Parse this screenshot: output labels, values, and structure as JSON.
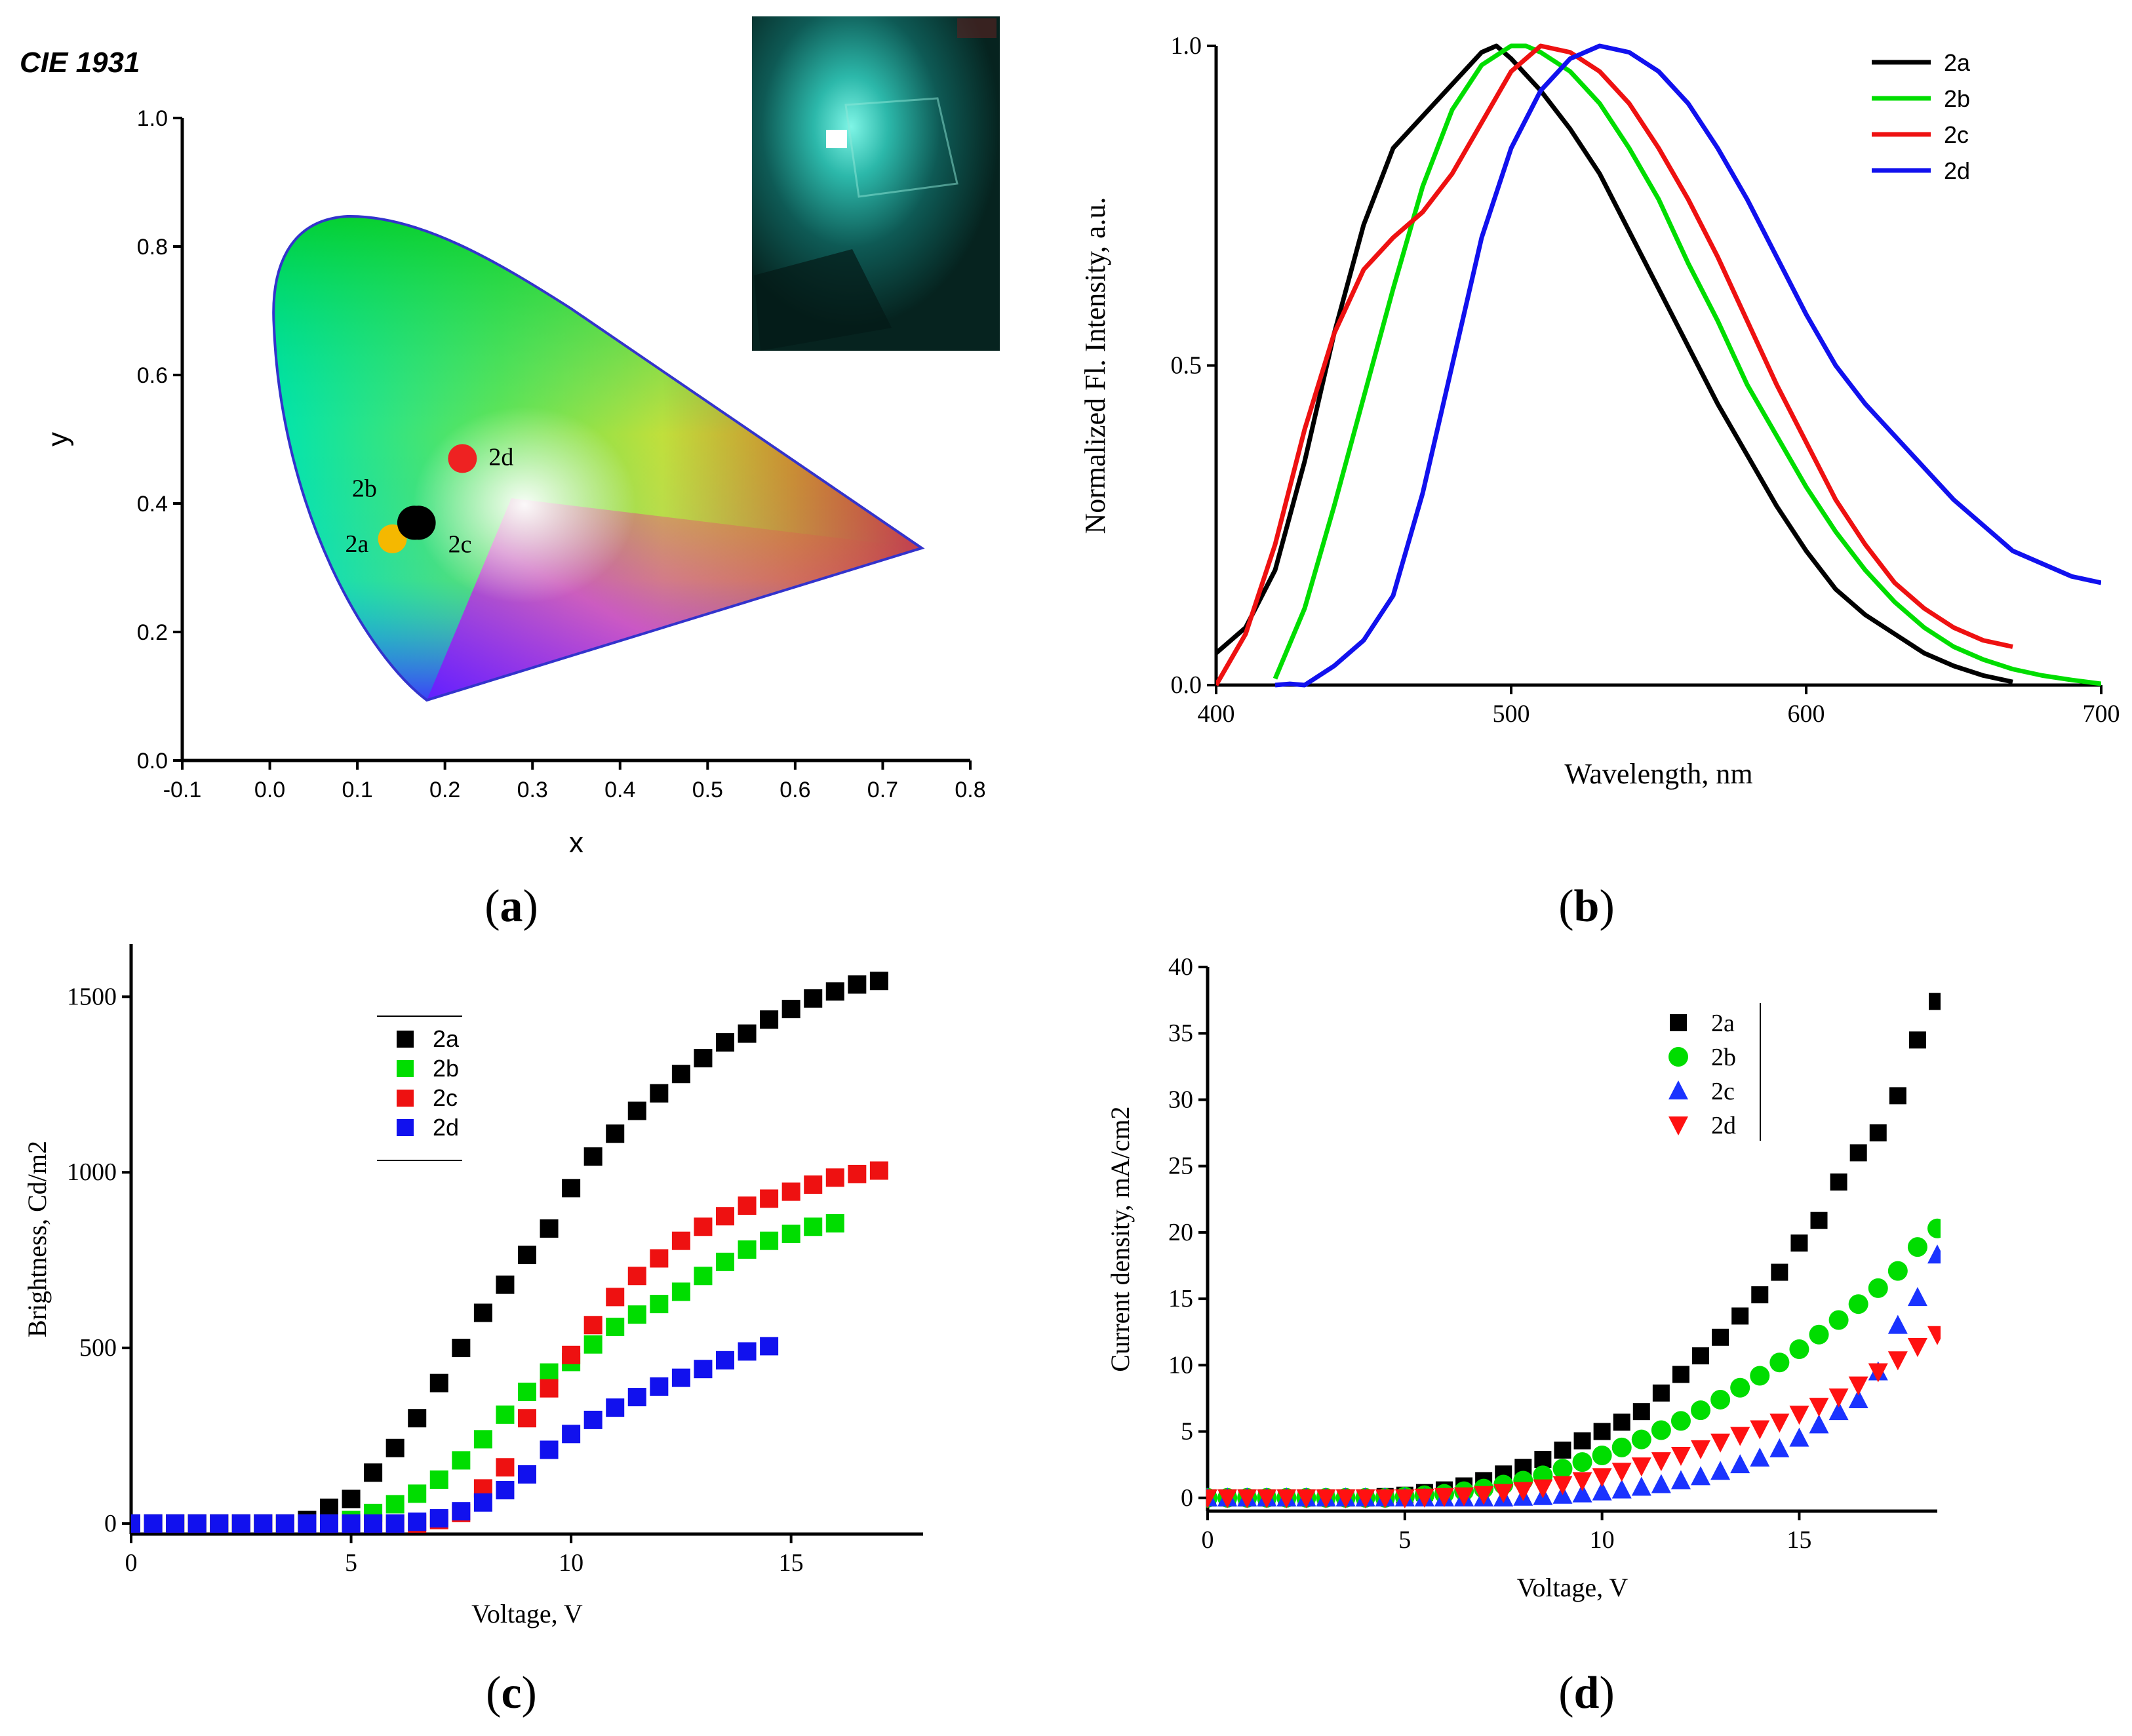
{
  "captions": {
    "a": "a",
    "b": "b",
    "c": "c",
    "d": "d"
  },
  "colors": {
    "2a_c": "#000000",
    "2b_c": "#00dd00",
    "2c_c": "#ee1111",
    "2d_c": "#1111ee",
    "2a_dot": "#f5b800",
    "2d_dot": "#ee2222"
  },
  "chart_data": [
    {
      "id": "a",
      "type": "scatter",
      "title": "CIE 1931",
      "xlabel": "x",
      "ylabel": "y",
      "xlim": [
        -0.1,
        0.8
      ],
      "ylim": [
        0.0,
        1.0
      ],
      "xticks": [
        "-0.1",
        "0.0",
        "0.1",
        "0.2",
        "0.3",
        "0.4",
        "0.5",
        "0.6",
        "0.7",
        "0.8"
      ],
      "yticks": [
        "0.0",
        "0.2",
        "0.4",
        "0.6",
        "0.8",
        "1.0"
      ],
      "points": [
        {
          "label": "2a",
          "x": 0.14,
          "y": 0.345
        },
        {
          "label": "2b",
          "x": 0.165,
          "y": 0.37
        },
        {
          "label": "2c",
          "x": 0.17,
          "y": 0.37
        },
        {
          "label": "2d",
          "x": 0.22,
          "y": 0.47
        }
      ]
    },
    {
      "id": "b",
      "type": "line",
      "xlabel": "Wavelength, nm",
      "ylabel": "Normalized Fl. Intensity, a.u.",
      "xlim": [
        400,
        700
      ],
      "ylim": [
        0,
        1
      ],
      "xticks": [
        "400",
        "500",
        "600",
        "700"
      ],
      "yticks": [
        "0.0",
        "0.5",
        "1.0"
      ],
      "legend_position": "top-right",
      "series": [
        {
          "name": "2a",
          "x": [
            400,
            410,
            420,
            430,
            440,
            450,
            460,
            470,
            480,
            490,
            495,
            500,
            510,
            520,
            530,
            540,
            550,
            560,
            570,
            580,
            590,
            600,
            610,
            620,
            630,
            640,
            650,
            660,
            670
          ],
          "y": [
            0.05,
            0.09,
            0.18,
            0.35,
            0.55,
            0.72,
            0.84,
            0.89,
            0.94,
            0.99,
            1.0,
            0.98,
            0.93,
            0.87,
            0.8,
            0.71,
            0.62,
            0.53,
            0.44,
            0.36,
            0.28,
            0.21,
            0.15,
            0.11,
            0.08,
            0.05,
            0.03,
            0.015,
            0.005
          ]
        },
        {
          "name": "2b",
          "x": [
            420,
            430,
            440,
            450,
            460,
            470,
            480,
            490,
            500,
            505,
            510,
            520,
            530,
            540,
            550,
            560,
            570,
            580,
            590,
            600,
            610,
            620,
            630,
            640,
            650,
            660,
            670,
            680,
            690,
            700
          ],
          "y": [
            0.01,
            0.12,
            0.28,
            0.45,
            0.62,
            0.78,
            0.9,
            0.97,
            1.0,
            1.0,
            0.99,
            0.96,
            0.91,
            0.84,
            0.76,
            0.66,
            0.57,
            0.47,
            0.39,
            0.31,
            0.24,
            0.18,
            0.13,
            0.09,
            0.06,
            0.04,
            0.025,
            0.015,
            0.008,
            0.002
          ]
        },
        {
          "name": "2c",
          "x": [
            400,
            410,
            420,
            430,
            440,
            450,
            460,
            470,
            480,
            490,
            500,
            510,
            520,
            530,
            540,
            550,
            560,
            570,
            580,
            590,
            600,
            610,
            620,
            630,
            640,
            650,
            660,
            670
          ],
          "y": [
            0.0,
            0.08,
            0.22,
            0.4,
            0.55,
            0.65,
            0.7,
            0.74,
            0.8,
            0.88,
            0.96,
            1.0,
            0.99,
            0.96,
            0.91,
            0.84,
            0.76,
            0.67,
            0.57,
            0.47,
            0.38,
            0.29,
            0.22,
            0.16,
            0.12,
            0.09,
            0.07,
            0.06
          ]
        },
        {
          "name": "2d",
          "x": [
            420,
            425,
            430,
            440,
            450,
            460,
            470,
            480,
            490,
            500,
            510,
            520,
            530,
            540,
            550,
            560,
            570,
            580,
            590,
            600,
            610,
            620,
            630,
            640,
            650,
            660,
            670,
            680,
            690,
            700
          ],
          "y": [
            0.0,
            0.002,
            0.0,
            0.03,
            0.07,
            0.14,
            0.3,
            0.5,
            0.7,
            0.84,
            0.93,
            0.98,
            1.0,
            0.99,
            0.96,
            0.91,
            0.84,
            0.76,
            0.67,
            0.58,
            0.5,
            0.44,
            0.39,
            0.34,
            0.29,
            0.25,
            0.21,
            0.19,
            0.17,
            0.16
          ]
        }
      ]
    },
    {
      "id": "c",
      "type": "scatter",
      "xlabel": "Voltage, V",
      "ylabel": "Brightness, Cd/m2",
      "xlim": [
        0,
        18
      ],
      "ylim": [
        -30,
        1650
      ],
      "xticks": [
        "0",
        "5",
        "10",
        "15"
      ],
      "yticks": [
        "0",
        "500",
        "1000",
        "1500"
      ],
      "legend_position": "upper-left",
      "series": [
        {
          "name": "2a",
          "x": [
            0,
            0.5,
            1,
            1.5,
            2,
            2.5,
            3,
            3.5,
            4,
            4.5,
            5,
            5.5,
            6,
            6.5,
            7,
            7.5,
            8,
            8.5,
            9,
            9.5,
            10,
            10.5,
            11,
            11.5,
            12,
            12.5,
            13,
            13.5,
            14,
            14.5,
            15,
            15.5,
            16,
            16.5,
            17
          ],
          "y": [
            0,
            0,
            0,
            0,
            0,
            0,
            0,
            0,
            10,
            45,
            70,
            145,
            215,
            300,
            400,
            500,
            600,
            680,
            765,
            840,
            955,
            1045,
            1110,
            1175,
            1225,
            1280,
            1325,
            1370,
            1395,
            1435,
            1465,
            1495,
            1515,
            1535,
            1545
          ]
        },
        {
          "name": "2b",
          "x": [
            0,
            0.5,
            1,
            1.5,
            2,
            2.5,
            3,
            3.5,
            4,
            4.5,
            5,
            5.5,
            6,
            6.5,
            7,
            7.5,
            8,
            8.5,
            9,
            9.5,
            10,
            10.5,
            11,
            11.5,
            12,
            12.5,
            13,
            13.5,
            14,
            14.5,
            15,
            15.5,
            16
          ],
          "y": [
            0,
            0,
            0,
            0,
            0,
            0,
            0,
            0,
            0,
            0,
            10,
            30,
            55,
            85,
            125,
            180,
            240,
            310,
            375,
            430,
            460,
            510,
            560,
            595,
            625,
            660,
            705,
            745,
            780,
            805,
            825,
            845,
            855
          ]
        },
        {
          "name": "2c",
          "x": [
            0,
            0.5,
            1,
            1.5,
            2,
            2.5,
            3,
            3.5,
            4,
            4.5,
            5,
            5.5,
            6,
            6.5,
            7,
            7.5,
            8,
            8.5,
            9,
            9.5,
            10,
            10.5,
            11,
            11.5,
            12,
            12.5,
            13,
            13.5,
            14,
            14.5,
            15,
            15.5,
            16,
            16.5,
            17
          ],
          "y": [
            0,
            0,
            0,
            0,
            0,
            0,
            0,
            0,
            0,
            0,
            0,
            0,
            0,
            0,
            10,
            30,
            100,
            160,
            300,
            385,
            480,
            565,
            645,
            705,
            755,
            805,
            845,
            875,
            905,
            925,
            945,
            965,
            985,
            995,
            1005
          ]
        },
        {
          "name": "2d",
          "x": [
            0,
            0.5,
            1,
            1.5,
            2,
            2.5,
            3,
            3.5,
            4,
            4.5,
            5,
            5.5,
            6,
            6.5,
            7,
            7.5,
            8,
            8.5,
            9,
            9.5,
            10,
            10.5,
            11,
            11.5,
            12,
            12.5,
            13,
            13.5,
            14,
            14.5
          ],
          "y": [
            0,
            0,
            0,
            0,
            0,
            0,
            0,
            0,
            0,
            0,
            0,
            0,
            0,
            5,
            15,
            35,
            60,
            95,
            140,
            210,
            255,
            295,
            330,
            360,
            390,
            415,
            440,
            465,
            490,
            505
          ]
        }
      ]
    },
    {
      "id": "d",
      "type": "scatter",
      "xlabel": "Voltage, V",
      "ylabel": "Current density, mA/cm2",
      "xlim": [
        0,
        18.5
      ],
      "ylim": [
        -1,
        40
      ],
      "xticks": [
        "0",
        "5",
        "10",
        "15"
      ],
      "yticks": [
        "0",
        "5",
        "10",
        "15",
        "20",
        "25",
        "30",
        "35",
        "40"
      ],
      "legend_position": "top-right",
      "series": [
        {
          "name": "2a",
          "marker": "square",
          "x": [
            0,
            0.5,
            1,
            1.5,
            2,
            2.5,
            3,
            3.5,
            4,
            4.5,
            5,
            5.5,
            6,
            6.5,
            7,
            7.5,
            8,
            8.5,
            9,
            9.5,
            10,
            10.5,
            11,
            11.5,
            12,
            12.5,
            13,
            13.5,
            14,
            14.5,
            15,
            15.5,
            16,
            16.5,
            17,
            17.5,
            18,
            18.5
          ],
          "y": [
            0,
            0,
            0,
            0,
            0,
            0,
            0,
            0,
            0,
            0.1,
            0.2,
            0.4,
            0.6,
            0.9,
            1.3,
            1.8,
            2.3,
            2.9,
            3.6,
            4.3,
            5.0,
            5.7,
            6.5,
            7.9,
            9.3,
            10.7,
            12.1,
            13.7,
            15.3,
            17.0,
            19.2,
            20.9,
            23.8,
            26.0,
            27.5,
            30.3,
            34.5,
            37.4
          ]
        },
        {
          "name": "2b",
          "marker": "circle",
          "x": [
            0,
            0.5,
            1,
            1.5,
            2,
            2.5,
            3,
            3.5,
            4,
            4.5,
            5,
            5.5,
            6,
            6.5,
            7,
            7.5,
            8,
            8.5,
            9,
            9.5,
            10,
            10.5,
            11,
            11.5,
            12,
            12.5,
            13,
            13.5,
            14,
            14.5,
            15,
            15.5,
            16,
            16.5,
            17,
            17.5,
            18,
            18.5
          ],
          "y": [
            0,
            0,
            0,
            0,
            0,
            0,
            0,
            0,
            0,
            0,
            0.1,
            0.2,
            0.3,
            0.5,
            0.7,
            1.0,
            1.3,
            1.7,
            2.2,
            2.7,
            3.2,
            3.8,
            4.4,
            5.1,
            5.8,
            6.6,
            7.4,
            8.3,
            9.2,
            10.2,
            11.2,
            12.3,
            13.4,
            14.6,
            15.8,
            17.1,
            18.9,
            20.3
          ]
        },
        {
          "name": "2c",
          "marker": "triangle-up",
          "x": [
            0,
            0.5,
            1,
            1.5,
            2,
            2.5,
            3,
            3.5,
            4,
            4.5,
            5,
            5.5,
            6,
            6.5,
            7,
            7.5,
            8,
            8.5,
            9,
            9.5,
            10,
            10.5,
            11,
            11.5,
            12,
            12.5,
            13,
            13.5,
            14,
            14.5,
            15,
            15.5,
            16,
            16.5,
            17,
            17.5,
            18,
            18.5
          ],
          "y": [
            0,
            0,
            0,
            0,
            0,
            0,
            0,
            0,
            0,
            0,
            0,
            0,
            0,
            0,
            0,
            0,
            0.05,
            0.1,
            0.2,
            0.3,
            0.45,
            0.6,
            0.8,
            1.0,
            1.3,
            1.6,
            2.0,
            2.5,
            3.0,
            3.7,
            4.5,
            5.5,
            6.5,
            7.4,
            9.5,
            13.0,
            15.1,
            18.3
          ]
        },
        {
          "name": "2d",
          "marker": "triangle-down",
          "x": [
            0,
            0.5,
            1,
            1.5,
            2,
            2.5,
            3,
            3.5,
            4,
            4.5,
            5,
            5.5,
            6,
            6.5,
            7,
            7.5,
            8,
            8.5,
            9,
            9.5,
            10,
            10.5,
            11,
            11.5,
            12,
            12.5,
            13,
            13.5,
            14,
            14.5,
            15,
            15.5,
            16,
            16.5,
            17,
            17.5,
            18,
            18.5
          ],
          "y": [
            0,
            0,
            0,
            0,
            0,
            0,
            0,
            0,
            0,
            0,
            0,
            0.05,
            0.1,
            0.15,
            0.25,
            0.4,
            0.55,
            0.75,
            1.0,
            1.3,
            1.6,
            2.0,
            2.4,
            2.8,
            3.2,
            3.7,
            4.2,
            4.7,
            5.2,
            5.7,
            6.3,
            6.9,
            7.6,
            8.5,
            9.5,
            10.4,
            11.4,
            12.3
          ]
        }
      ]
    }
  ]
}
